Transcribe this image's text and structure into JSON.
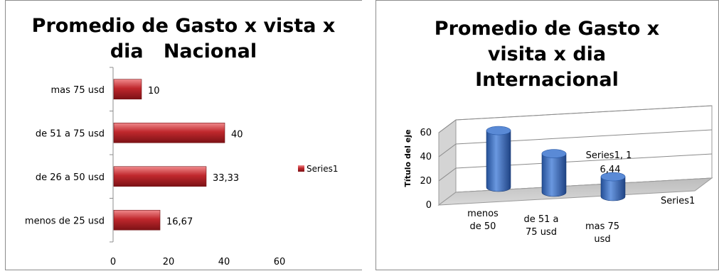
{
  "charts": [
    {
      "id": "nacional",
      "title": "Promedio de Gasto x vista x dia   Nacional",
      "chart_data": {
        "type": "bar",
        "orientation": "horizontal",
        "title": "Promedio de Gasto x vista x dia   Nacional",
        "categories": [
          "mas 75 usd",
          "de 51 a 75 usd",
          "de 26 a 50 usd",
          "menos de 25 usd"
        ],
        "series": [
          {
            "name": "Series1",
            "values": [
              10,
              40,
              33.33,
              16.67
            ],
            "labels": [
              "10",
              "40",
              "33,33",
              "16,67"
            ]
          }
        ],
        "xlim": [
          0,
          60
        ],
        "ticks": [
          "0",
          "20",
          "40",
          "60"
        ],
        "legend": "right",
        "grid": false,
        "color": "#c0282d"
      }
    },
    {
      "id": "internacional",
      "title": "Promedio de Gasto x visita x dia Internacional",
      "chart_data": {
        "type": "bar",
        "style": "3d-cylinder",
        "title": "Promedio de Gasto x visita x dia Internacional",
        "ylabel": "Título del eje",
        "categories": [
          "menos de 50",
          "de 51 a 75 usd",
          "mas 75 usd"
        ],
        "series": [
          {
            "name": "Series1",
            "values": [
              47,
              32,
              16.44
            ]
          }
        ],
        "annotation": "Series1, 16,44",
        "ylim": [
          0,
          60
        ],
        "ticks": [
          "0",
          "20",
          "40",
          "60"
        ],
        "depth_label": "Series1",
        "grid": true,
        "color": "#3b6fc4"
      }
    }
  ]
}
